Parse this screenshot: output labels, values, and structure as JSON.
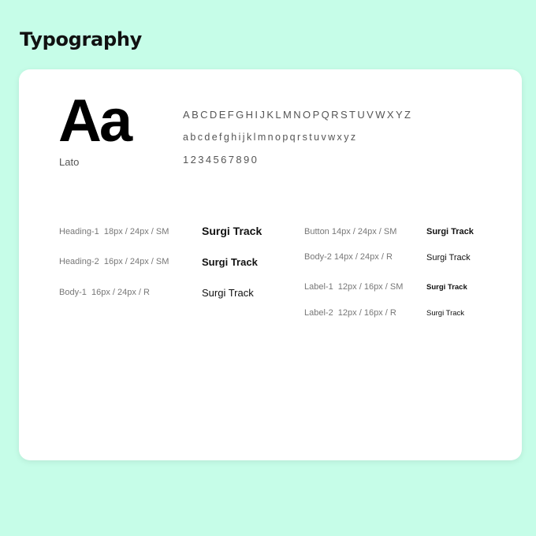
{
  "page_title": "Typography",
  "font": {
    "sample": "Aa",
    "name": "Lato"
  },
  "glyphs": {
    "uppercase": "ABCDEFGHIJKLMNOPQRSTUVWXYZ",
    "lowercase": "abcdefghijklmnopqrstuvwxyz",
    "digits": "1234567890"
  },
  "styles_left": [
    {
      "spec": "Heading-1  18px / 24px / SM",
      "sample": "Surgi Track"
    },
    {
      "spec": "Heading-2  16px / 24px / SM",
      "sample": "Surgi Track"
    },
    {
      "spec": "Body-1  16px / 24px / R",
      "sample": "Surgi Track"
    }
  ],
  "styles_right": [
    {
      "spec": "Button 14px / 24px / SM",
      "sample": "Surgi Track"
    },
    {
      "spec": "Body-2 14px / 24px / R",
      "sample": "Surgi Track"
    },
    {
      "spec": "Label-1  12px / 16px / SM",
      "sample": "Surgi Track"
    },
    {
      "spec": "Label-2  12px / 16px / R",
      "sample": "Surgi Track"
    }
  ]
}
